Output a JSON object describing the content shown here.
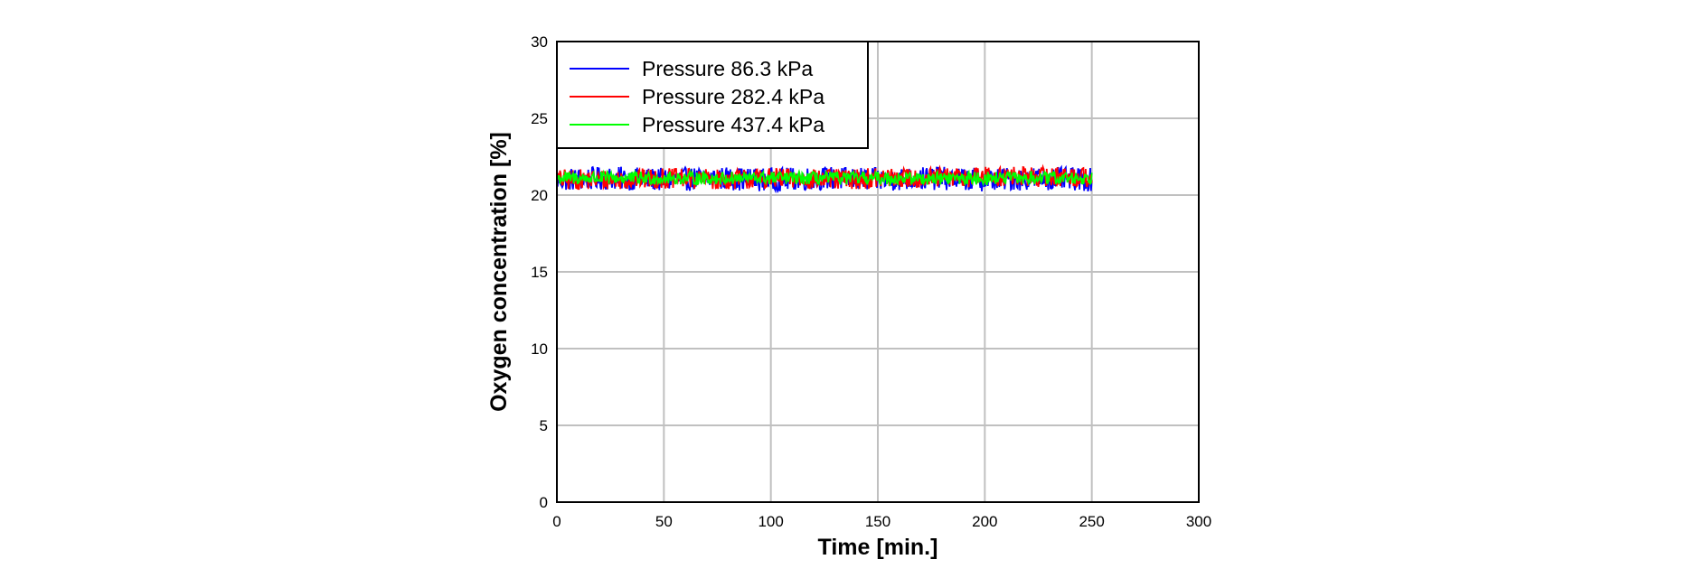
{
  "chart_data": {
    "type": "line",
    "xlabel": "Time [min.]",
    "ylabel": "Oxygen concentration [%]",
    "xlim": [
      0,
      300
    ],
    "ylim": [
      0,
      30
    ],
    "xticks": [
      0,
      50,
      100,
      150,
      200,
      250,
      300
    ],
    "yticks": [
      0,
      5,
      10,
      15,
      20,
      25,
      30
    ],
    "xtick_labels": [
      "0",
      "50",
      "100",
      "150",
      "200",
      "250",
      "300"
    ],
    "ytick_labels": [
      "0",
      "5",
      "10",
      "15",
      "20",
      "25",
      "30"
    ],
    "grid": true,
    "legend_position": "top-left",
    "x_range_data": [
      0,
      250
    ],
    "series": [
      {
        "name": "Pressure 86.3 kPa",
        "color": "#0000ff",
        "x": [
          0,
          25,
          50,
          75,
          100,
          125,
          150,
          175,
          200,
          225,
          250
        ],
        "values": [
          21.0,
          21.1,
          21.0,
          21.1,
          21.0,
          21.1,
          21.0,
          21.1,
          21.0,
          21.1,
          21.0
        ],
        "min": 20.2,
        "max": 22.0
      },
      {
        "name": "Pressure 282.4 kPa",
        "color": "#ff0000",
        "x": [
          0,
          25,
          50,
          75,
          100,
          125,
          150,
          175,
          200,
          225,
          250
        ],
        "values": [
          21.0,
          21.0,
          21.1,
          21.0,
          21.1,
          21.0,
          21.1,
          21.1,
          21.2,
          21.2,
          21.2
        ],
        "min": 20.4,
        "max": 22.0
      },
      {
        "name": "Pressure 437.4 kPa",
        "color": "#00ff00",
        "x": [
          0,
          25,
          50,
          75,
          100,
          125,
          150,
          175,
          200,
          225,
          250
        ],
        "values": [
          21.1,
          21.1,
          21.1,
          21.1,
          21.1,
          21.1,
          21.1,
          21.1,
          21.1,
          21.1,
          21.1
        ],
        "min": 20.6,
        "max": 21.6
      }
    ]
  }
}
